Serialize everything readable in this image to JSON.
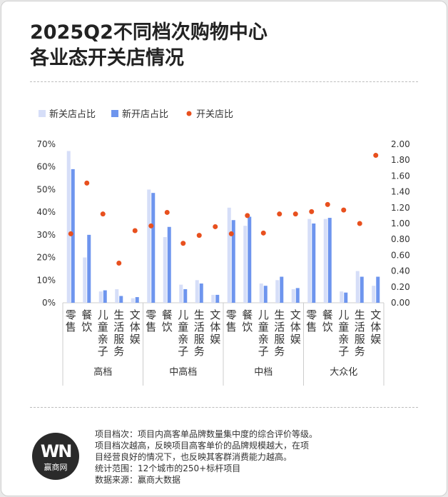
{
  "title_lines": [
    "2025Q2不同档次购物中心",
    "各业态开关店情况"
  ],
  "colors": {
    "close_ratio": "#d6def8",
    "open_ratio": "#6e95ee",
    "open_close_ratio": "#e8501e",
    "axis": "#cccccc",
    "text": "#333333"
  },
  "chart_data": {
    "type": "bar",
    "legend": [
      "新关店占比",
      "新开店占比",
      "开关店比"
    ],
    "legend_position": "top-left",
    "groups": [
      "高档",
      "中高档",
      "中档",
      "大众化"
    ],
    "categories": [
      "零售",
      "餐饮",
      "儿童亲子",
      "生活服务",
      "文体娱"
    ],
    "y_left": {
      "min": 0,
      "max": 70,
      "step": 10,
      "unit": "%",
      "ticks": [
        "0%",
        "10%",
        "20%",
        "30%",
        "40%",
        "50%",
        "60%",
        "70%"
      ]
    },
    "y_right": {
      "min": 0,
      "max": 2,
      "step": 0.2,
      "ticks": [
        "0.00",
        "0.20",
        "0.40",
        "0.60",
        "0.80",
        "1.00",
        "1.20",
        "1.40",
        "1.60",
        "1.80",
        "2.00"
      ]
    },
    "series": [
      {
        "name": "新关店占比",
        "axis": "left",
        "type": "bar",
        "values": [
          [
            67,
            20,
            5,
            6,
            2
          ],
          [
            50,
            29,
            8,
            10,
            3.5
          ],
          [
            42,
            34,
            8.5,
            10,
            6
          ],
          [
            37,
            37,
            5,
            14,
            7.5
          ]
        ]
      },
      {
        "name": "新开店占比",
        "axis": "left",
        "type": "bar",
        "values": [
          [
            59,
            30,
            5.5,
            3,
            2.5
          ],
          [
            48.5,
            33.5,
            6,
            8.5,
            3.5
          ],
          [
            36.5,
            38,
            7.5,
            11.5,
            6.5
          ],
          [
            35,
            37.5,
            4.5,
            11.5,
            11.5
          ]
        ]
      },
      {
        "name": "开关店比",
        "axis": "right",
        "type": "scatter",
        "values": [
          [
            0.87,
            1.51,
            1.12,
            0.5,
            0.91
          ],
          [
            0.97,
            1.14,
            0.75,
            0.85,
            0.96
          ],
          [
            0.87,
            1.1,
            0.88,
            1.12,
            1.12
          ],
          [
            1.15,
            1.24,
            1.17,
            1.0,
            1.86
          ]
        ]
      }
    ]
  },
  "notes": [
    "项目档次：项目内高客单品牌数量集中度的综合评价等级。",
    "项目档次越高，反映项目高客单价的品牌规模越大，在项",
    "目经营良好的情况下，也反映其客群消费能力越高。",
    "统计范围：12个城市的250+标杆项目",
    "数据来源：赢商大数据"
  ],
  "logo": {
    "mark": "WN",
    "name": "赢商网"
  }
}
